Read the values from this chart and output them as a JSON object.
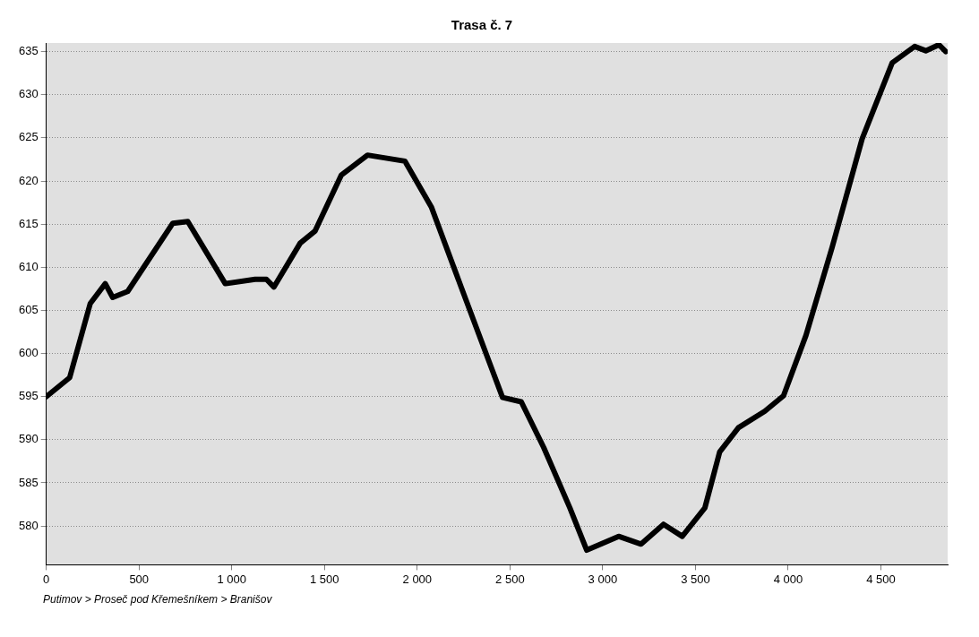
{
  "chart_data": {
    "type": "line",
    "title": "Trasa č. 7",
    "annotations": [
      "Putimov > Proseč pod Křemešníkem > Branišov"
    ],
    "x": [
      0,
      126,
      237,
      318,
      358,
      439,
      682,
      763,
      965,
      1126,
      1187,
      1227,
      1369,
      1449,
      1591,
      1732,
      1934,
      2076,
      2237,
      2399,
      2460,
      2561,
      2682,
      2823,
      2914,
      3086,
      3207,
      3328,
      3429,
      3551,
      3631,
      3732,
      3874,
      3975,
      4096,
      4237,
      4399,
      4561,
      4682,
      4742,
      4813,
      4850
    ],
    "series": [
      {
        "color": "#000000",
        "values": [
          595,
          597.2,
          605.8,
          608.1,
          606.5,
          607.2,
          615.1,
          615.3,
          608.1,
          608.6,
          608.6,
          607.7,
          612.8,
          614.2,
          620.7,
          623,
          622.3,
          617,
          607.7,
          598.4,
          594.9,
          594.4,
          589.1,
          582.1,
          577.2,
          578.8,
          577.9,
          580.2,
          578.8,
          582.1,
          588.6,
          591.4,
          593.3,
          595.1,
          602.1,
          612.3,
          624.9,
          633.7,
          635.6,
          635.1,
          635.8,
          635
        ]
      }
    ],
    "xlim": [
      0,
      4860
    ],
    "ylim": [
      575.5,
      636
    ],
    "xticks": [
      0,
      500,
      {
        "value": 1000,
        "label": "1 000"
      },
      {
        "value": 1500,
        "label": "1 500"
      },
      {
        "value": 2000,
        "label": "2 000"
      },
      {
        "value": 2500,
        "label": "2 500"
      },
      {
        "value": 3000,
        "label": "3 000"
      },
      {
        "value": 3500,
        "label": "3 500"
      },
      {
        "value": 4000,
        "label": "4 000"
      },
      {
        "value": 4500,
        "label": "4 500"
      }
    ],
    "yticks": [
      580,
      585,
      590,
      595,
      600,
      605,
      610,
      615,
      620,
      625,
      630,
      635
    ],
    "grid": "y",
    "legend": false,
    "marker": "none",
    "line_style": "solid"
  }
}
